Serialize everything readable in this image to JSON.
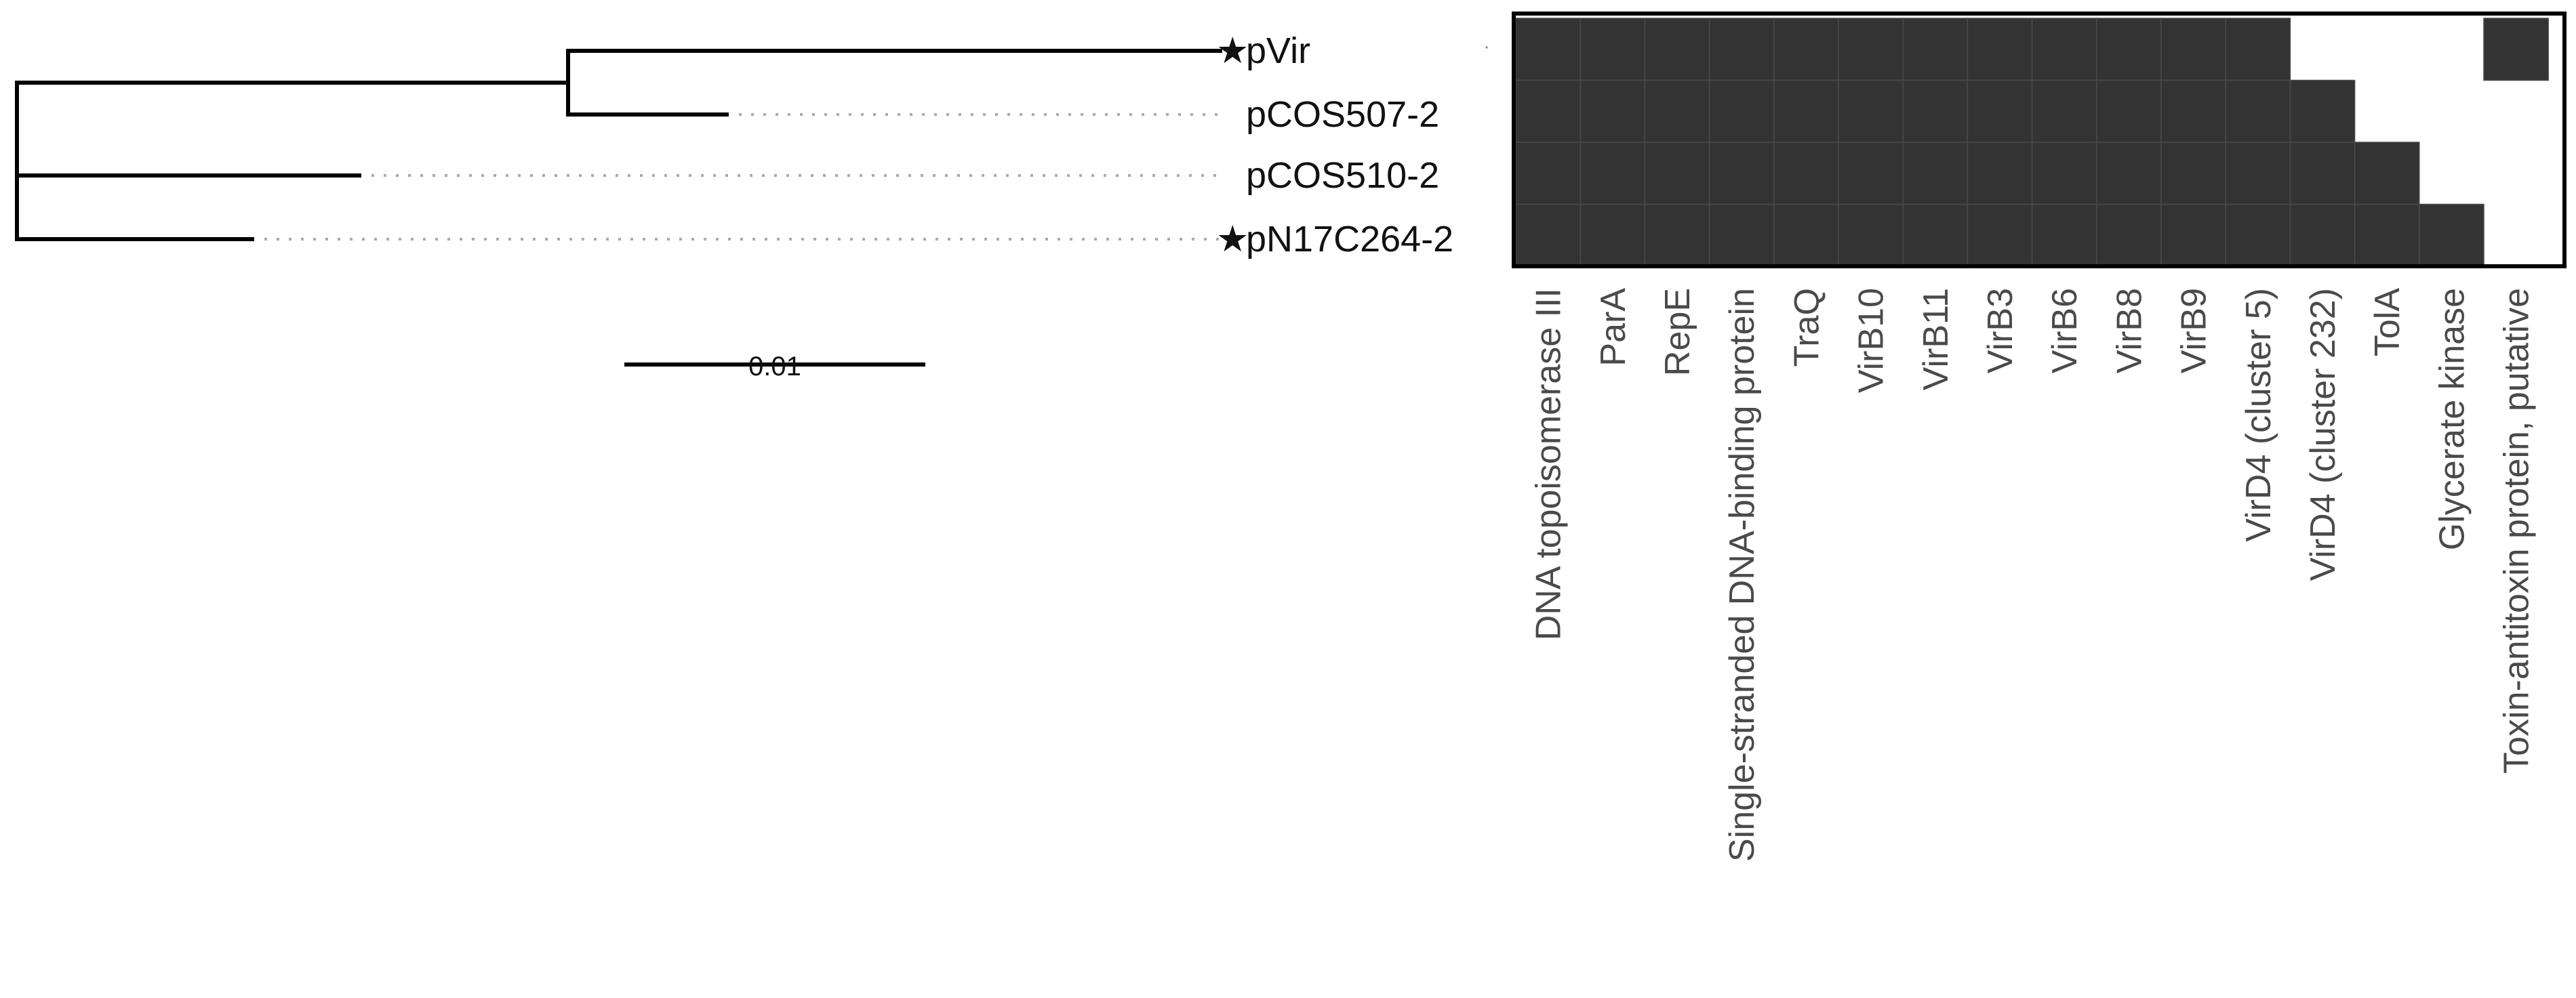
{
  "tree": {
    "tips": [
      {
        "label": "pVir",
        "starred": true
      },
      {
        "label": "pCOS507-2",
        "starred": false
      },
      {
        "label": "pCOS510-2",
        "starred": false
      },
      {
        "label": "pN17C264-2",
        "starred": true
      }
    ],
    "star_glyph": "★",
    "scale_bar_label": "0.01"
  },
  "matrix": {
    "columns": [
      "DNA topoisomerase III",
      "ParA",
      "RepE",
      "Single-stranded DNA-binding protein",
      "TraQ",
      "VirB10",
      "VirB11",
      "VirB3",
      "VirB6",
      "VirB8",
      "VirB9",
      "VirD4 (cluster 5)",
      "VirD4 (cluster 232)",
      "TolA",
      "Glycerate kinase",
      "Toxin-antitoxin protein, putative"
    ],
    "rows": [
      "pVir",
      "pCOS507-2",
      "pCOS510-2",
      "pN17C264-2"
    ],
    "presence": [
      [
        1,
        1,
        1,
        1,
        1,
        1,
        1,
        1,
        1,
        1,
        1,
        1,
        0,
        0,
        0,
        1
      ],
      [
        1,
        1,
        1,
        1,
        1,
        1,
        1,
        1,
        1,
        1,
        1,
        1,
        1,
        0,
        0,
        0
      ],
      [
        1,
        1,
        1,
        1,
        1,
        1,
        1,
        1,
        1,
        1,
        1,
        1,
        1,
        1,
        0,
        0
      ],
      [
        1,
        1,
        1,
        1,
        1,
        1,
        1,
        1,
        1,
        1,
        1,
        1,
        1,
        1,
        1,
        0
      ]
    ],
    "present_color": "#333333",
    "absent_color": "#ffffff"
  }
}
